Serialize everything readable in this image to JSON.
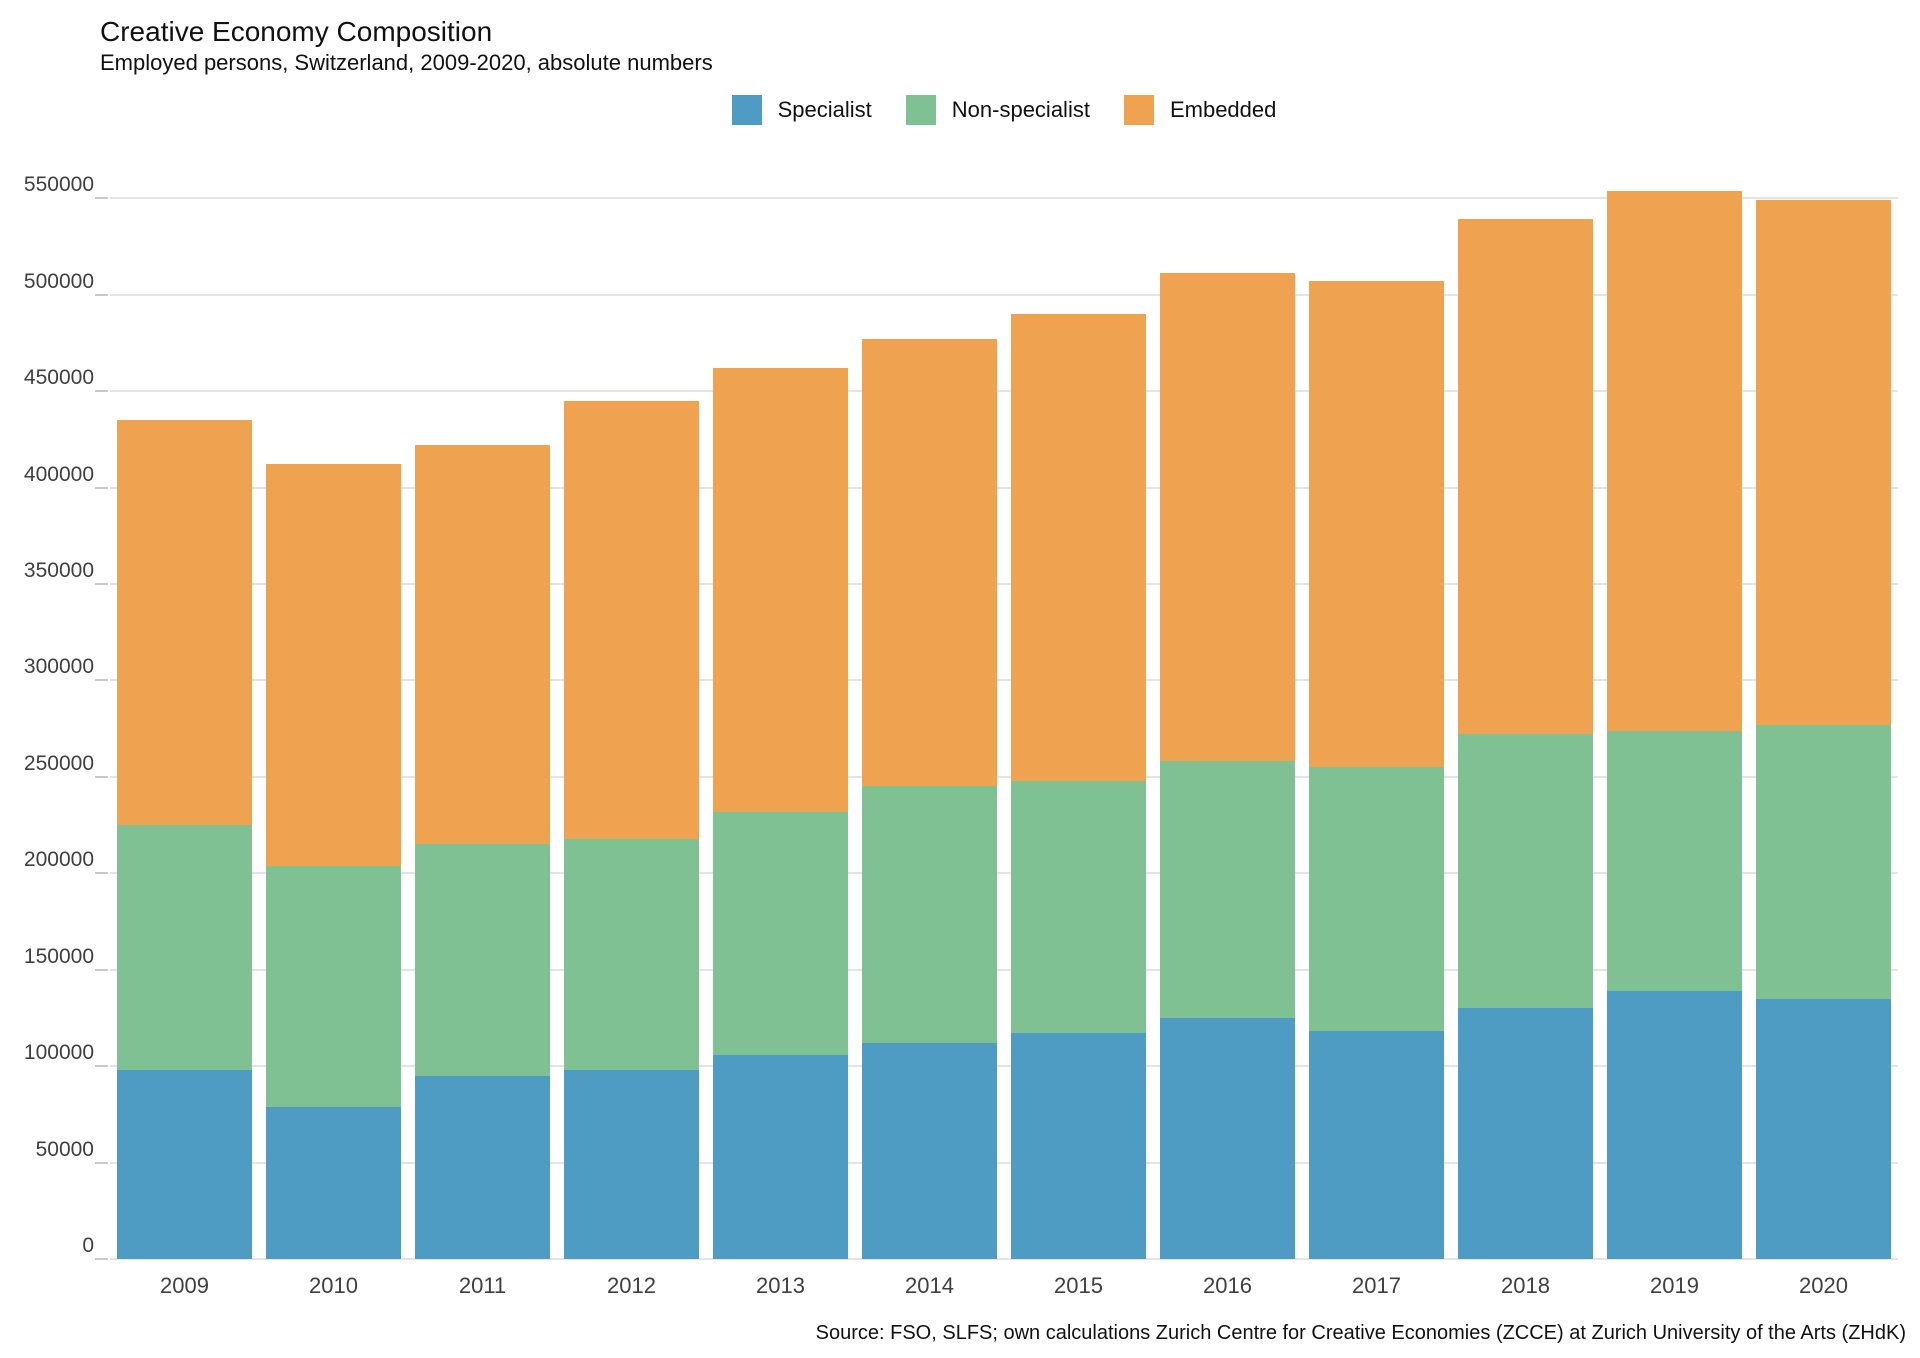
{
  "header": {
    "title": "Creative Economy Composition",
    "subtitle": "Employed persons, Switzerland, 2009-2020, absolute numbers"
  },
  "legend": [
    {
      "label": "Specialist",
      "color": "#4e9bc4"
    },
    {
      "label": "Non-specialist",
      "color": "#80c193"
    },
    {
      "label": "Embedded",
      "color": "#efa24f"
    }
  ],
  "source": "Source: FSO, SLFS; own calculations Zurich Centre for Creative Economies (ZCCE) at Zurich University of the Arts (ZHdK)",
  "chart_data": {
    "type": "bar",
    "stacked": true,
    "title": "Creative Economy Composition",
    "subtitle": "Employed persons, Switzerland, 2009-2020, absolute numbers",
    "xlabel": "",
    "ylabel": "",
    "categories": [
      "2009",
      "2010",
      "2011",
      "2012",
      "2013",
      "2014",
      "2015",
      "2016",
      "2017",
      "2018",
      "2019",
      "2020"
    ],
    "series": [
      {
        "name": "Specialist",
        "color": "#4e9bc4",
        "values": [
          98000,
          79000,
          95000,
          98000,
          106000,
          112000,
          117000,
          125000,
          118000,
          130000,
          139000,
          135000
        ]
      },
      {
        "name": "Non-specialist",
        "color": "#80c193",
        "values": [
          127000,
          125000,
          120000,
          120000,
          126000,
          133000,
          131000,
          133000,
          137000,
          142000,
          135000,
          142000
        ]
      },
      {
        "name": "Embedded",
        "color": "#efa24f",
        "values": [
          210000,
          208000,
          207000,
          227000,
          230000,
          232000,
          242000,
          253000,
          252000,
          267000,
          280000,
          272000
        ]
      }
    ],
    "totals": [
      435000,
      412000,
      422000,
      445000,
      462000,
      477000,
      490000,
      511000,
      507000,
      539000,
      554000,
      549000
    ],
    "ylim": [
      0,
      575000
    ],
    "yticks": [
      0,
      50000,
      100000,
      150000,
      200000,
      250000,
      300000,
      350000,
      400000,
      450000,
      500000,
      550000
    ],
    "grid": true,
    "legend_position": "top-center"
  }
}
